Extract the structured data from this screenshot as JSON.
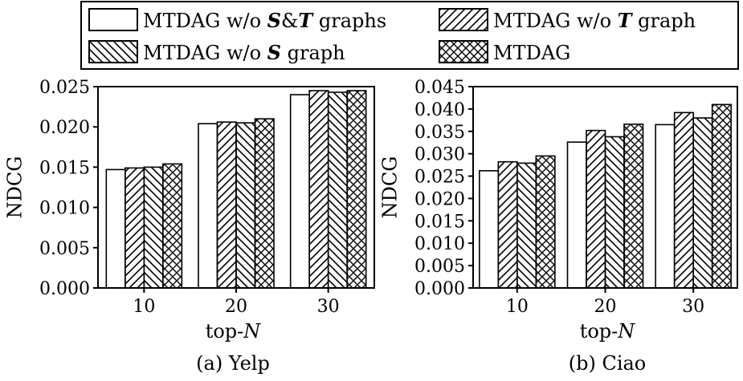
{
  "legend": {
    "items": [
      {
        "parts": [
          {
            "t": "MTDAG w/o "
          },
          {
            "t": "S",
            "b": true
          },
          {
            "t": "&"
          },
          {
            "t": "T",
            "b": true
          },
          {
            "t": " graphs"
          }
        ]
      },
      {
        "parts": [
          {
            "t": "MTDAG w/o "
          },
          {
            "t": "T",
            "b": true
          },
          {
            "t": " graph"
          }
        ]
      },
      {
        "parts": [
          {
            "t": "MTDAG w/o "
          },
          {
            "t": "S",
            "b": true
          },
          {
            "t": " graph"
          }
        ]
      },
      {
        "parts": [
          {
            "t": "MTDAG"
          }
        ]
      }
    ]
  },
  "chart_data": [
    {
      "type": "bar",
      "caption": "(a) Yelp",
      "ylabel": "NDCG",
      "xlabel_parts": [
        {
          "t": "top-"
        },
        {
          "t": "N",
          "i": true
        }
      ],
      "categories": [
        "10",
        "20",
        "30"
      ],
      "ylim": [
        0,
        0.025
      ],
      "yticks": [
        "0.000",
        "0.005",
        "0.010",
        "0.015",
        "0.020",
        "0.025"
      ],
      "series": [
        {
          "name": "MTDAG w/o S&T graphs",
          "pattern": "none",
          "values": [
            0.0147,
            0.0204,
            0.024
          ]
        },
        {
          "name": "MTDAG w/o T graph",
          "pattern": "forward",
          "values": [
            0.0149,
            0.0206,
            0.0245
          ]
        },
        {
          "name": "MTDAG w/o S graph",
          "pattern": "back",
          "values": [
            0.015,
            0.0205,
            0.0243
          ]
        },
        {
          "name": "MTDAG",
          "pattern": "cross",
          "values": [
            0.0154,
            0.021,
            0.0245
          ]
        }
      ]
    },
    {
      "type": "bar",
      "caption": "(b) Ciao",
      "ylabel": "NDCG",
      "xlabel_parts": [
        {
          "t": "top-"
        },
        {
          "t": "N",
          "i": true
        }
      ],
      "categories": [
        "10",
        "20",
        "30"
      ],
      "ylim": [
        0,
        0.045
      ],
      "yticks": [
        "0.000",
        "0.005",
        "0.010",
        "0.015",
        "0.020",
        "0.025",
        "0.030",
        "0.035",
        "0.040",
        "0.045"
      ],
      "series": [
        {
          "name": "MTDAG w/o S&T graphs",
          "pattern": "none",
          "values": [
            0.0262,
            0.0326,
            0.0365
          ]
        },
        {
          "name": "MTDAG w/o T graph",
          "pattern": "forward",
          "values": [
            0.0282,
            0.0352,
            0.0392
          ]
        },
        {
          "name": "MTDAG w/o S graph",
          "pattern": "back",
          "values": [
            0.0279,
            0.0338,
            0.038
          ]
        },
        {
          "name": "MTDAG",
          "pattern": "cross",
          "values": [
            0.0295,
            0.0366,
            0.041
          ]
        }
      ]
    }
  ]
}
